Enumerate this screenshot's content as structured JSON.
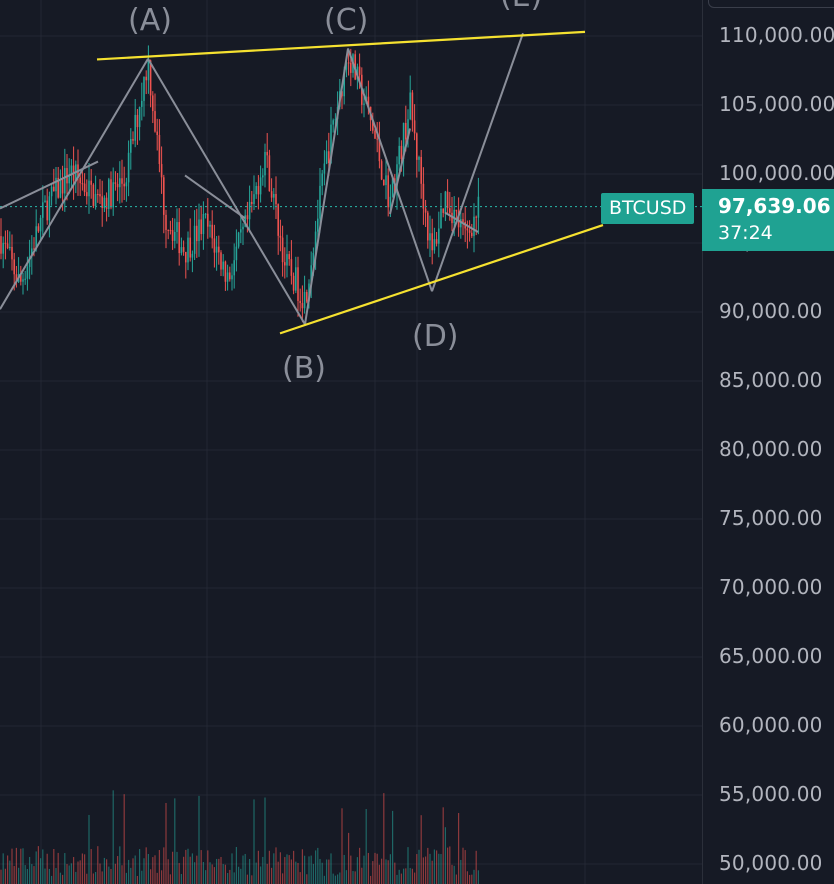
{
  "chart_data": {
    "type": "candlestick",
    "symbol": "BTCUSD",
    "last_price": "97,639.06",
    "countdown": "37:24",
    "y_axis": {
      "ticks": [
        "110,000.00",
        "105,000.00",
        "100,000.00",
        "95,000.00",
        "90,000.00",
        "85,000.00",
        "80,000.00",
        "75,000.00",
        "70,000.00",
        "65,000.00",
        "60,000.00",
        "55,000.00",
        "50,000.00"
      ],
      "tick_values": [
        110000,
        105000,
        100000,
        95000,
        90000,
        85000,
        80000,
        75000,
        70000,
        65000,
        60000,
        55000,
        50000
      ]
    },
    "grid": true,
    "colors": {
      "up": "#26a69a",
      "down": "#ef5350",
      "trendline": "#f5e130",
      "wave": "#8a8e99",
      "price_line": "#26a69a",
      "background": "#161a25"
    },
    "wave_points": [
      {
        "label": "(A)",
        "price": 108350
      },
      {
        "label": "(B)",
        "price": 89100
      },
      {
        "label": "(C)",
        "price": 109100
      },
      {
        "label": "(D)",
        "price": 91500
      },
      {
        "label": "(E)",
        "price": 110200
      }
    ],
    "trendlines": [
      {
        "name": "upper",
        "from_price": 108300,
        "to_price": 110300
      },
      {
        "name": "lower",
        "from_price": 88450,
        "to_price": 96300
      }
    ]
  }
}
